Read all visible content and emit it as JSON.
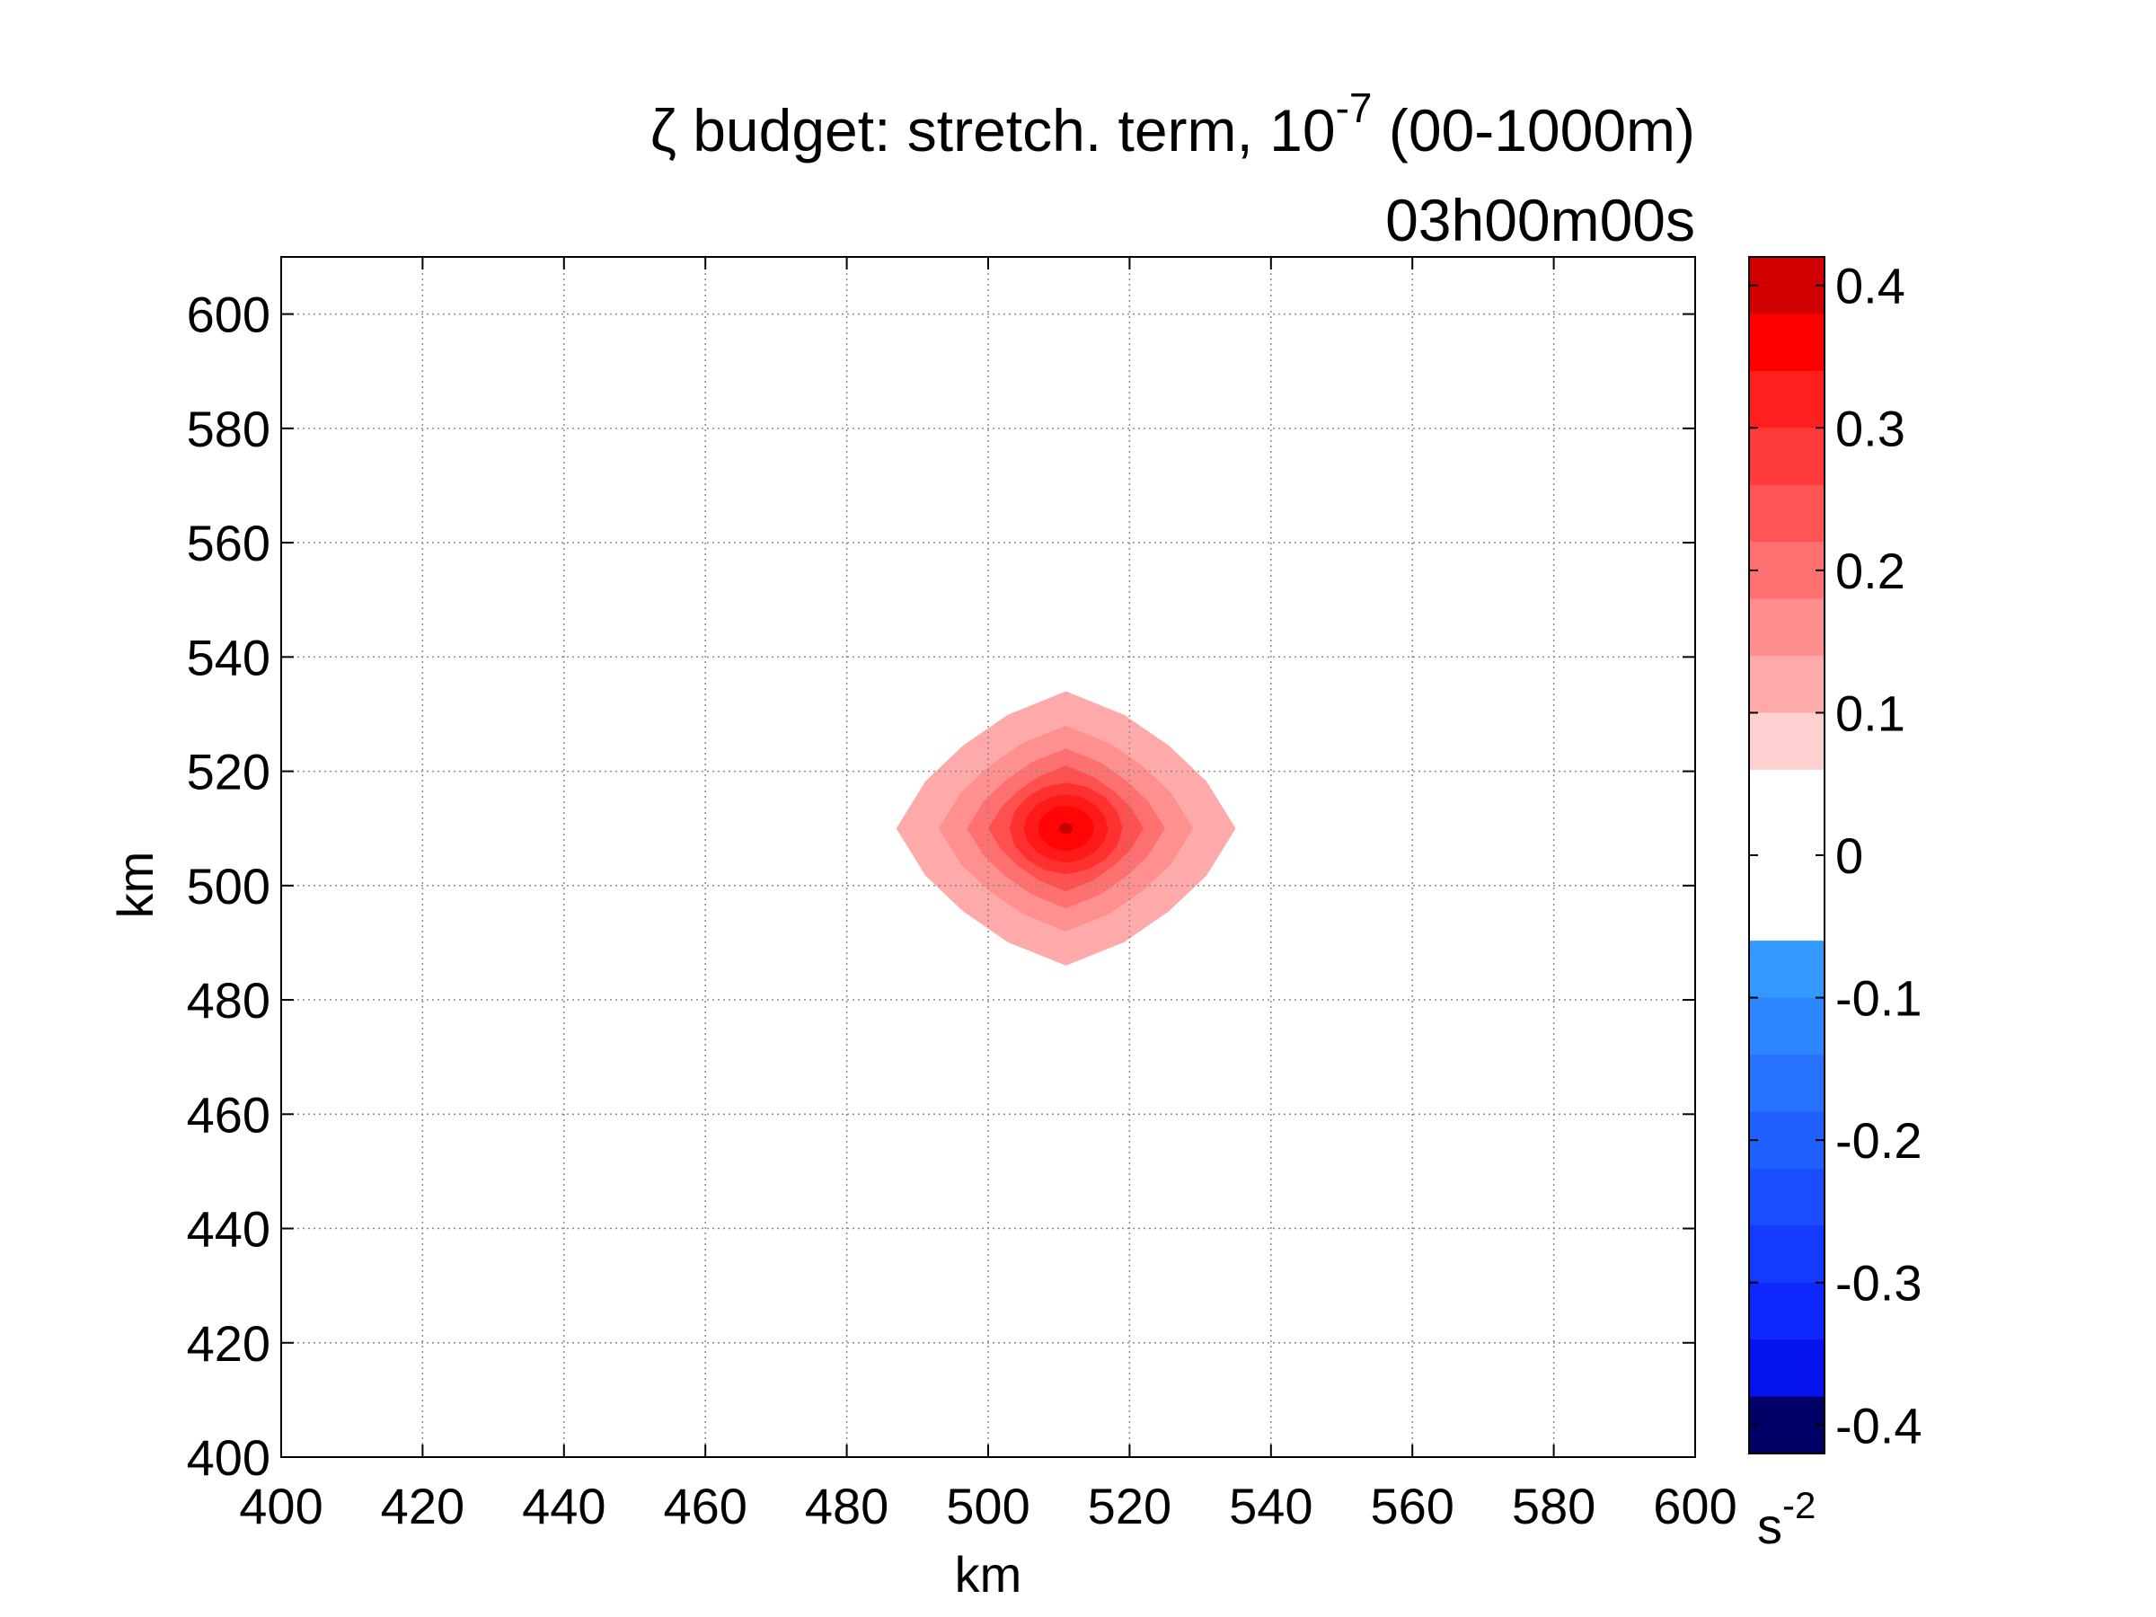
{
  "chart_data": {
    "type": "heatmap",
    "title": {
      "symbol": "ζ",
      "main": " budget: stretch. term, 10",
      "exponent": "-7",
      "suffix": " (00-1000m)"
    },
    "subtitle": "03h00m00s",
    "xlabel": "km",
    "ylabel": "km",
    "xlim": [
      400,
      600
    ],
    "ylim": [
      400,
      610
    ],
    "x_ticks": [
      "400",
      "420",
      "440",
      "460",
      "480",
      "500",
      "520",
      "540",
      "560",
      "580",
      "600"
    ],
    "y_ticks": [
      "400",
      "420",
      "440",
      "460",
      "480",
      "500",
      "520",
      "540",
      "560",
      "580",
      "600"
    ],
    "grid": true,
    "feature": {
      "shape": "single positive maximum (filled contours)",
      "center_km": [
        511,
        510
      ],
      "peak_value": 0.38,
      "outer_contour_half_width_km": [
        24,
        24
      ]
    },
    "colorbar": {
      "ticks": [
        "0.4",
        "0.3",
        "0.2",
        "0.1",
        "0",
        "-0.1",
        "-0.2",
        "-0.3",
        "-0.4"
      ],
      "range": [
        -0.42,
        0.42
      ],
      "unit": "s",
      "unit_exponent": "-2",
      "levels": [
        {
          "from": 0.38,
          "to": 0.42,
          "color": "#d10000"
        },
        {
          "from": 0.34,
          "to": 0.38,
          "color": "#ff0000"
        },
        {
          "from": 0.3,
          "to": 0.34,
          "color": "#ff1f1f"
        },
        {
          "from": 0.26,
          "to": 0.3,
          "color": "#ff3a3a"
        },
        {
          "from": 0.22,
          "to": 0.26,
          "color": "#ff5555"
        },
        {
          "from": 0.18,
          "to": 0.22,
          "color": "#ff7171"
        },
        {
          "from": 0.14,
          "to": 0.18,
          "color": "#ff8e8e"
        },
        {
          "from": 0.1,
          "to": 0.14,
          "color": "#ffaaaa"
        },
        {
          "from": 0.06,
          "to": 0.1,
          "color": "#ffd0d0"
        },
        {
          "from": -0.06,
          "to": 0.06,
          "color": "#ffffff"
        },
        {
          "from": -0.1,
          "to": -0.06,
          "color": "#3399ff"
        },
        {
          "from": -0.14,
          "to": -0.1,
          "color": "#2d86ff"
        },
        {
          "from": -0.18,
          "to": -0.14,
          "color": "#2773ff"
        },
        {
          "from": -0.22,
          "to": -0.18,
          "color": "#2060ff"
        },
        {
          "from": -0.26,
          "to": -0.22,
          "color": "#1a4dff"
        },
        {
          "from": -0.3,
          "to": -0.26,
          "color": "#143aff"
        },
        {
          "from": -0.34,
          "to": -0.3,
          "color": "#0e27ff"
        },
        {
          "from": -0.38,
          "to": -0.34,
          "color": "#0514ef"
        },
        {
          "from": -0.42,
          "to": -0.38,
          "color": "#000066"
        }
      ]
    },
    "contour_rings": [
      {
        "level": 0.1,
        "color": "#ffaaaa",
        "rx_km": 24,
        "ry_km": 24
      },
      {
        "level": 0.14,
        "color": "#ff9090",
        "rx_km": 18,
        "ry_km": 18
      },
      {
        "level": 0.18,
        "color": "#ff7070",
        "rx_km": 14,
        "ry_km": 14
      },
      {
        "level": 0.22,
        "color": "#ff5050",
        "rx_km": 11,
        "ry_km": 11
      },
      {
        "level": 0.26,
        "color": "#ff3030",
        "rx_km": 8,
        "ry_km": 8
      },
      {
        "level": 0.3,
        "color": "#ff1a1a",
        "rx_km": 6,
        "ry_km": 6
      },
      {
        "level": 0.34,
        "color": "#ff0505",
        "rx_km": 4,
        "ry_km": 4
      },
      {
        "level": 0.38,
        "color": "#c80000",
        "rx_km": 1,
        "ry_km": 1
      }
    ]
  }
}
